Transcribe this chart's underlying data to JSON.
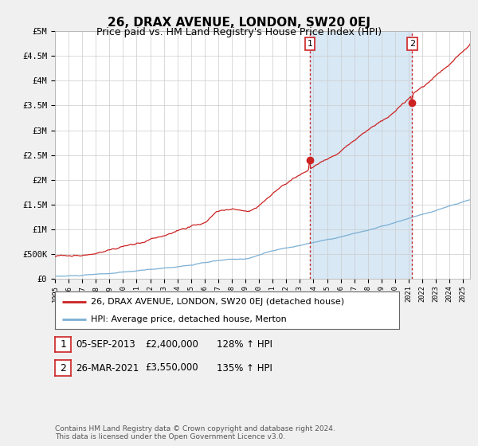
{
  "title": "26, DRAX AVENUE, LONDON, SW20 0EJ",
  "subtitle": "Price paid vs. HM Land Registry's House Price Index (HPI)",
  "ylabel_ticks": [
    "£0",
    "£500K",
    "£1M",
    "£1.5M",
    "£2M",
    "£2.5M",
    "£3M",
    "£3.5M",
    "£4M",
    "£4.5M",
    "£5M"
  ],
  "ylim": [
    0,
    5000000
  ],
  "ytick_vals": [
    0,
    500000,
    1000000,
    1500000,
    2000000,
    2500000,
    3000000,
    3500000,
    4000000,
    4500000,
    5000000
  ],
  "x_start_year": 1995,
  "x_end_year": 2025,
  "hpi_color": "#7bafd4",
  "price_color": "#cc2222",
  "vline_color": "#cc2222",
  "shade_color": "#d8e8f5",
  "marker1_year": 2013.75,
  "marker1_price": 2400000,
  "marker1_label": "1",
  "marker2_year": 2021.25,
  "marker2_price": 3550000,
  "marker2_label": "2",
  "legend_line1": "26, DRAX AVENUE, LONDON, SW20 0EJ (detached house)",
  "legend_line2": "HPI: Average price, detached house, Merton",
  "table_row1": [
    "1",
    "05-SEP-2013",
    "£2,400,000",
    "128% ↑ HPI"
  ],
  "table_row2": [
    "2",
    "26-MAR-2021",
    "£3,550,000",
    "135% ↑ HPI"
  ],
  "footer": "Contains HM Land Registry data © Crown copyright and database right 2024.\nThis data is licensed under the Open Government Licence v3.0.",
  "bg_color": "#f0f0f0",
  "plot_bg_color": "#ffffff",
  "title_fontsize": 11,
  "subtitle_fontsize": 9,
  "axis_fontsize": 7.5,
  "legend_fontsize": 8
}
